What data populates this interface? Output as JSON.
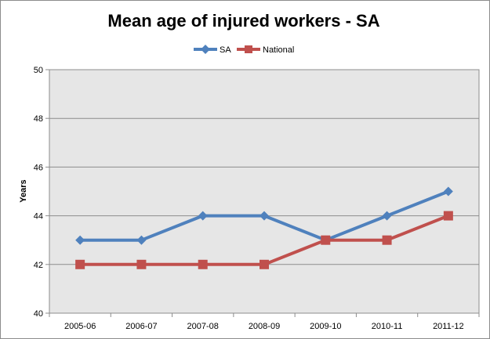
{
  "chart_data": {
    "type": "line",
    "title": "Mean age of injured workers - SA",
    "xlabel": "",
    "ylabel": "Years",
    "categories": [
      "2005-06",
      "2006-07",
      "2007-08",
      "2008-09",
      "2009-10",
      "2010-11",
      "2011-12"
    ],
    "ylim": [
      40,
      50
    ],
    "yticks": [
      40,
      42,
      44,
      46,
      48,
      50
    ],
    "grid": true,
    "legend_position": "top",
    "series": [
      {
        "name": "SA",
        "values": [
          43,
          43,
          44,
          44,
          43,
          44,
          45
        ],
        "color": "#4f81bd",
        "marker": "diamond"
      },
      {
        "name": "National",
        "values": [
          42,
          42,
          42,
          42,
          43,
          43,
          44
        ],
        "color": "#c0504d",
        "marker": "square"
      }
    ]
  }
}
